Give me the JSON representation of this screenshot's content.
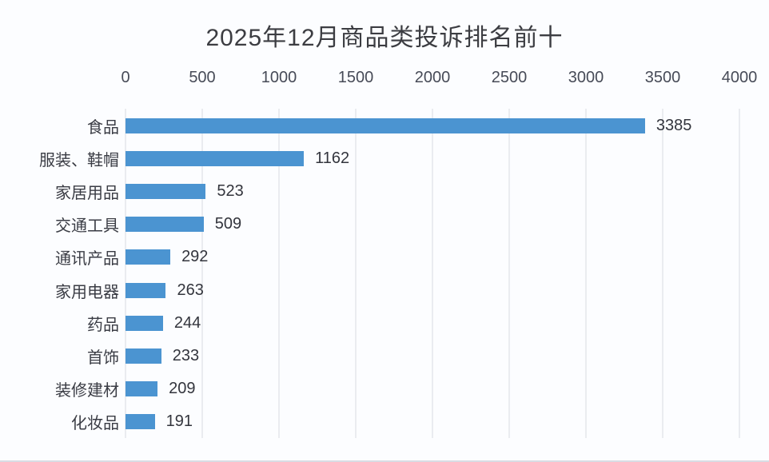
{
  "chart_data": {
    "type": "bar",
    "orientation": "horizontal",
    "title": "2025年12月商品类投诉排名前十",
    "categories": [
      "食品",
      "服装、鞋帽",
      "家居用品",
      "交通工具",
      "通讯产品",
      "家用电器",
      "药品",
      "首饰",
      "装修建材",
      "化妆品"
    ],
    "values": [
      3385,
      1162,
      523,
      509,
      292,
      263,
      244,
      233,
      209,
      191
    ],
    "x_ticks": [
      "0",
      "500",
      "1000",
      "1500",
      "2000",
      "2500",
      "3000",
      "3500",
      "4000"
    ],
    "xlim": [
      0,
      4000
    ],
    "xlabel": "",
    "ylabel": "",
    "grid": "vertical-gridlines-on",
    "legend": "none",
    "data_labels": "shown-at-bar-end",
    "bar_color": "#4b94d1",
    "gridline_color": "#d8dbe0",
    "background_color": "#fcfdff"
  }
}
